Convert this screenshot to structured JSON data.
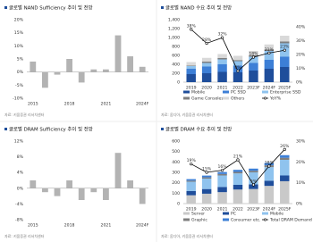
{
  "chart_data": [
    {
      "type": "bar",
      "title": "글로벌 NAND Sufficiency 추이 및 전망",
      "source": "자료: 키움증권 리서치센터",
      "categories": [
        "2015",
        null,
        null,
        "2018",
        null,
        null,
        "2021",
        null,
        null,
        "2024F"
      ],
      "values": [
        4,
        -6,
        -1,
        5,
        -4,
        1,
        1,
        14,
        6,
        2
      ],
      "color": "#b3b3b3",
      "ylim": [
        -10,
        20
      ],
      "yticks": [
        {
          "value": -10,
          "label": "-10%"
        },
        {
          "value": -5,
          "label": "-5%"
        },
        {
          "value": 0,
          "label": "0%"
        },
        {
          "value": 5,
          "label": "5%"
        },
        {
          "value": 10,
          "label": "10%"
        },
        {
          "value": 15,
          "label": "15%"
        },
        {
          "value": 20,
          "label": "20%"
        }
      ]
    },
    {
      "type": "combo",
      "title": "글로벌 NAND 수요 추이 및 전망",
      "source": "자료: 옴디아, 키움증권 리서치센터",
      "categories": [
        "2019",
        "2020",
        "2021",
        "2022",
        "2023F",
        "2024F",
        "2025F"
      ],
      "series": [
        {
          "name": "Mobile",
          "color": "#1f4e9b",
          "values": [
            180,
            200,
            230,
            220,
            260,
            300,
            340
          ]
        },
        {
          "name": "PC SSD",
          "color": "#3d7fd6",
          "values": [
            120,
            150,
            170,
            150,
            170,
            200,
            230
          ]
        },
        {
          "name": "Enterprise SSD",
          "color": "#8fc3ee",
          "values": [
            60,
            80,
            110,
            100,
            140,
            200,
            300
          ]
        },
        {
          "name": "Game Consoles",
          "color": "#7f7f7f",
          "values": [
            10,
            30,
            30,
            25,
            30,
            35,
            40
          ]
        },
        {
          "name": "Others",
          "color": "#d9d9d9",
          "values": [
            80,
            85,
            90,
            95,
            100,
            110,
            130
          ]
        },
        {
          "name": "YoY%",
          "color": "#000000",
          "axis": "y2",
          "values": [
            38,
            28,
            32,
            8,
            18,
            21,
            23
          ],
          "value_labels": [
            "38%",
            "28%",
            "32%",
            "8%",
            "18%",
            "21%",
            "23%"
          ]
        }
      ],
      "ylim": [
        0,
        1400
      ],
      "yticks": [
        0,
        200,
        400,
        600,
        800,
        {
          "value": 1000,
          "label": "1,000"
        },
        {
          "value": 1200,
          "label": "1,200"
        },
        {
          "value": 1400,
          "label": "1,400"
        }
      ],
      "y2lim": [
        0,
        45
      ],
      "y2ticks": [
        {
          "value": 0,
          "label": "0%"
        },
        {
          "value": 10,
          "label": "10%"
        },
        {
          "value": 20,
          "label": "20%"
        },
        {
          "value": 30,
          "label": "30%"
        },
        {
          "value": 40,
          "label": "40%"
        }
      ]
    },
    {
      "type": "bar",
      "title": "글로벌 DRAM Sufficiency 추이 및 전망",
      "source": "자료: 키움증권 리서치센터",
      "categories": [
        "2015",
        null,
        null,
        "2018",
        null,
        null,
        "2021",
        null,
        null,
        "2024F"
      ],
      "values": [
        2,
        -1,
        -2,
        2,
        -3,
        -1,
        -3,
        9,
        2,
        -4
      ],
      "color": "#b3b3b3",
      "ylim": [
        -8,
        12
      ],
      "yticks": [
        {
          "value": -8,
          "label": "-8%"
        },
        {
          "value": -4,
          "label": "-4%"
        },
        {
          "value": 0,
          "label": "0%"
        },
        {
          "value": 4,
          "label": "4%"
        },
        {
          "value": 8,
          "label": "8%"
        },
        {
          "value": 12,
          "label": "12%"
        }
      ]
    },
    {
      "type": "combo",
      "title": "글로벌 DRAM 수요 추이 및 전망",
      "source": "자료: 옴디아, 키움증권 리서치센터",
      "categories": [
        "2019",
        "2020",
        "2021",
        "2022",
        "2023F",
        "2024F",
        "2025F"
      ],
      "series": [
        {
          "name": "Server",
          "color": "#c9c9c9",
          "values": [
            80,
            95,
            110,
            135,
            140,
            170,
            215
          ]
        },
        {
          "name": "PC",
          "color": "#1f4e9b",
          "values": [
            40,
            45,
            50,
            45,
            45,
            50,
            55
          ]
        },
        {
          "name": "Mobile",
          "color": "#8fc3ee",
          "values": [
            90,
            100,
            110,
            110,
            115,
            130,
            150
          ]
        },
        {
          "name": "Graphic",
          "color": "#7f7f7f",
          "values": [
            10,
            12,
            14,
            14,
            15,
            18,
            20
          ]
        },
        {
          "name": "Consumer etc.",
          "color": "#3d7fd6",
          "values": [
            15,
            17,
            19,
            20,
            21,
            23,
            25
          ]
        },
        {
          "name": "Total DRAM Demand",
          "color": "#000000",
          "axis": "y2",
          "values": [
            19,
            15,
            16,
            21,
            9,
            18,
            26
          ],
          "value_labels": [
            "19%",
            "15%",
            "16%",
            "21%",
            "9%",
            "18%",
            "26%"
          ]
        }
      ],
      "ylim": [
        0,
        600
      ],
      "yticks": [
        0,
        100,
        200,
        300,
        400,
        500,
        600
      ],
      "y2lim": [
        0,
        30
      ],
      "y2ticks": [
        {
          "value": 0,
          "label": "0%"
        },
        {
          "value": 10,
          "label": "10%"
        },
        {
          "value": 20,
          "label": "20%"
        },
        {
          "value": 30,
          "label": "30%"
        }
      ]
    }
  ]
}
